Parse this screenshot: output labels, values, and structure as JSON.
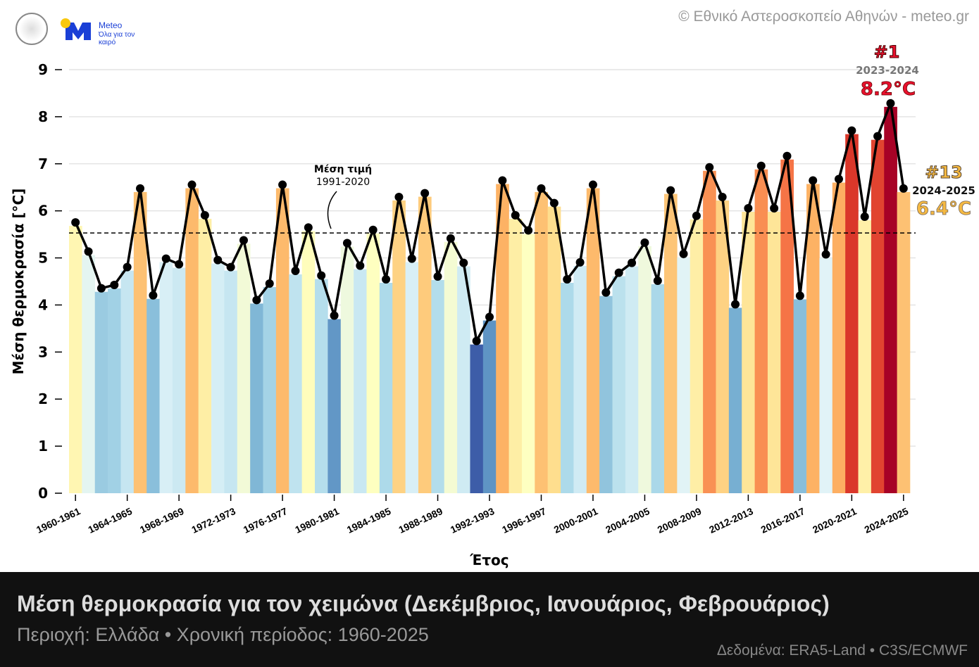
{
  "header": {
    "copyright": "© Εθνικό Αστεροσκοπείο Αθηνών - meteo.gr",
    "meteo_logo": "Meteo",
    "meteo_tagline": "Όλα για τον καιρό"
  },
  "footer": {
    "title": "Μέση θερμοκρασία για τον χειμώνα (Δεκέμβριος, Ιανουάριος, Φεβρουάριος)",
    "subtitle": "Περιοχή: Ελλάδα • Χρονική περίοδος: 1960-2025",
    "source": "Δεδομένα: ERA5-Land • C3S/ECMWF"
  },
  "chart_data": {
    "type": "bar",
    "xlabel": "Έτος",
    "ylabel": "Μέση θερμοκρασία [°C]",
    "ylim": [
      0,
      9
    ],
    "yticks": [
      0,
      1,
      2,
      3,
      4,
      5,
      6,
      7,
      8,
      9
    ],
    "grid": "horizontal",
    "categories": [
      "1960-1961",
      "1961-1962",
      "1962-1963",
      "1963-1964",
      "1964-1965",
      "1965-1966",
      "1966-1967",
      "1967-1968",
      "1968-1969",
      "1969-1970",
      "1970-1971",
      "1971-1972",
      "1972-1973",
      "1973-1974",
      "1974-1975",
      "1975-1976",
      "1976-1977",
      "1977-1978",
      "1978-1979",
      "1979-1980",
      "1980-1981",
      "1981-1982",
      "1982-1983",
      "1983-1984",
      "1984-1985",
      "1985-1986",
      "1986-1987",
      "1987-1988",
      "1988-1989",
      "1989-1990",
      "1990-1991",
      "1991-1992",
      "1992-1993",
      "1993-1994",
      "1994-1995",
      "1995-1996",
      "1996-1997",
      "1997-1998",
      "1998-1999",
      "1999-2000",
      "2000-2001",
      "2001-2002",
      "2002-2003",
      "2003-2004",
      "2004-2005",
      "2005-2006",
      "2006-2007",
      "2007-2008",
      "2008-2009",
      "2009-2010",
      "2010-2011",
      "2011-2012",
      "2012-2013",
      "2013-2014",
      "2014-2015",
      "2015-2016",
      "2016-2017",
      "2017-2018",
      "2018-2019",
      "2019-2020",
      "2020-2021",
      "2021-2022",
      "2022-2023",
      "2023-2024",
      "2024-2025"
    ],
    "values": [
      5.68,
      5.06,
      4.28,
      4.35,
      4.73,
      6.4,
      4.13,
      4.91,
      4.79,
      6.48,
      5.83,
      4.88,
      4.73,
      5.3,
      4.03,
      4.38,
      6.48,
      4.65,
      5.57,
      4.55,
      3.7,
      5.24,
      4.76,
      5.52,
      4.47,
      6.22,
      4.91,
      6.3,
      4.53,
      5.34,
      4.82,
      3.16,
      3.67,
      6.57,
      5.83,
      5.51,
      6.4,
      6.09,
      4.47,
      4.83,
      6.48,
      4.19,
      4.61,
      4.82,
      5.25,
      4.44,
      6.36,
      5.01,
      5.82,
      6.85,
      6.22,
      3.94,
      5.98,
      6.88,
      5.98,
      7.09,
      4.12,
      6.57,
      5.0,
      6.6,
      7.63,
      5.8,
      7.51,
      8.21,
      6.4
    ],
    "tick_labels_every": 4,
    "reference_line": {
      "value": 5.53,
      "label": "Μέση τιμή",
      "period": "1991-2020"
    },
    "annotations": [
      {
        "rank": "#1",
        "season": "2023-2024",
        "value_label": "8.2°C",
        "color": "#e8112d"
      },
      {
        "rank": "#13",
        "season": "2024-2025",
        "value_label": "6.4°C",
        "color": "#f5b942"
      }
    ]
  }
}
